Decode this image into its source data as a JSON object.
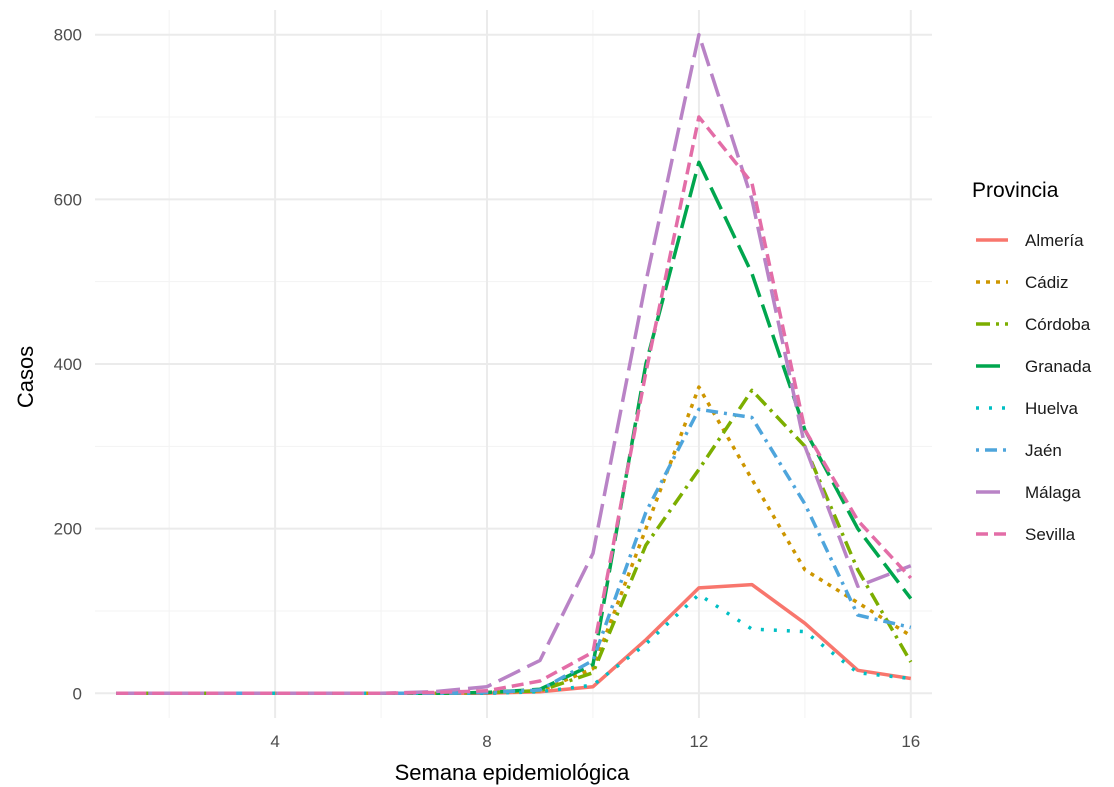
{
  "chart_data": {
    "type": "line",
    "title": "",
    "xlabel": "Semana epidemiológica",
    "ylabel": "Casos",
    "xlim": [
      0.6,
      16.4
    ],
    "ylim": [
      -30,
      830
    ],
    "x_ticks": [
      4,
      8,
      12,
      16
    ],
    "y_ticks": [
      0,
      200,
      400,
      600,
      800
    ],
    "grid": true,
    "legend": {
      "title": "Provincia",
      "position": "right"
    },
    "x": [
      1,
      2,
      3,
      4,
      5,
      6,
      7,
      8,
      9,
      10,
      11,
      12,
      13,
      14,
      15,
      16
    ],
    "series": [
      {
        "name": "Almería",
        "color": "#F8766D",
        "dash": "solid",
        "values": [
          0,
          0,
          0,
          0,
          0,
          0,
          0,
          0,
          2,
          8,
          65,
          128,
          132,
          85,
          28,
          18
        ]
      },
      {
        "name": "Cádiz",
        "color": "#CD9600",
        "dash": "dotted",
        "values": [
          0,
          0,
          0,
          0,
          0,
          0,
          0,
          1,
          3,
          30,
          200,
          372,
          260,
          150,
          110,
          70
        ]
      },
      {
        "name": "Córdoba",
        "color": "#7CAE00",
        "dash": "dashdot",
        "values": [
          0,
          0,
          0,
          0,
          0,
          0,
          0,
          1,
          3,
          25,
          180,
          272,
          368,
          300,
          150,
          38
        ]
      },
      {
        "name": "Granada",
        "color": "#00A64E",
        "dash": "longdash",
        "values": [
          0,
          0,
          0,
          0,
          0,
          0,
          0,
          1,
          5,
          35,
          400,
          645,
          510,
          320,
          200,
          115
        ]
      },
      {
        "name": "Huelva",
        "color": "#00BFC4",
        "dash": "dotted-sparse",
        "values": [
          0,
          0,
          0,
          0,
          0,
          0,
          0,
          0,
          2,
          10,
          60,
          120,
          78,
          75,
          25,
          18
        ]
      },
      {
        "name": "Jaén",
        "color": "#4EA5DC",
        "dash": "dotdash",
        "values": [
          0,
          0,
          0,
          0,
          0,
          0,
          0,
          1,
          4,
          40,
          220,
          345,
          335,
          230,
          95,
          80
        ]
      },
      {
        "name": "Málaga",
        "color": "#B983C6",
        "dash": "longdash",
        "values": [
          0,
          0,
          0,
          0,
          0,
          0,
          2,
          8,
          40,
          170,
          500,
          800,
          600,
          300,
          130,
          155
        ]
      },
      {
        "name": "Sevilla",
        "color": "#E36DA7",
        "dash": "dashed",
        "values": [
          0,
          0,
          0,
          0,
          0,
          0,
          1,
          3,
          15,
          50,
          390,
          700,
          620,
          320,
          210,
          140
        ]
      }
    ]
  }
}
